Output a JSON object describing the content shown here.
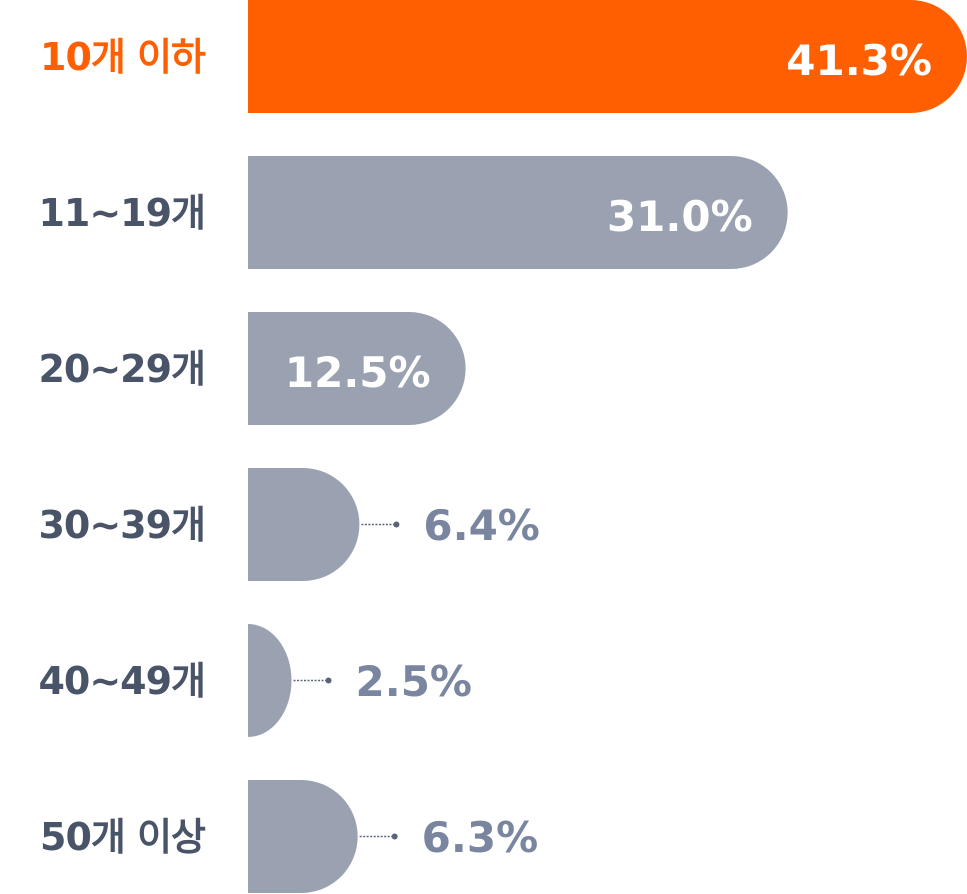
{
  "chart_data": {
    "type": "bar",
    "orientation": "horizontal",
    "categories": [
      "10개 이하",
      "11~19개",
      "20~29개",
      "30~39개",
      "40~49개",
      "50개 이상"
    ],
    "values": [
      41.3,
      31.0,
      12.5,
      6.4,
      2.5,
      6.3
    ],
    "value_labels": [
      "41.3%",
      "31.0%",
      "12.5%",
      "6.4%",
      "2.5%",
      "6.3%"
    ],
    "highlight_index": 0,
    "grid": false,
    "colors": {
      "highlight": "#FF5F00",
      "bar": "#9AA1B1",
      "category_text": "#4A5468",
      "outside_value_text": "#7A86A0",
      "inside_value_text": "#FFFFFF",
      "leader": "#5A6478"
    }
  }
}
